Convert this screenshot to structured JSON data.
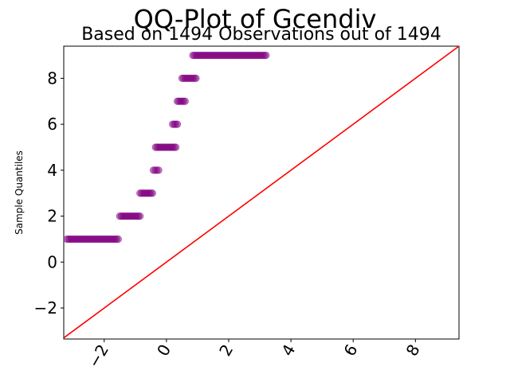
{
  "chart_data": {
    "type": "scatter",
    "title": "QQ-Plot of Gcendiv",
    "subtitle": "Based on 1494 Observations out of 1494",
    "xlabel": "",
    "ylabel": "Sample Quantiles",
    "xlim": [
      -3.3,
      9.4
    ],
    "ylim": [
      -3.35,
      9.4
    ],
    "xticks": [
      -2,
      0,
      2,
      4,
      6,
      8
    ],
    "xtick_labels": [
      "−2",
      "0",
      "2",
      "4",
      "6",
      "8"
    ],
    "yticks": [
      -2,
      0,
      2,
      4,
      6,
      8
    ],
    "ytick_labels": [
      "−2",
      "0",
      "2",
      "4",
      "6",
      "8"
    ],
    "grid": false,
    "point_color": "#800080",
    "line_color": "#ff0000",
    "reference_line": {
      "slope": 1,
      "intercept": 0
    },
    "series": [
      {
        "points": [
          {
            "y": 1,
            "x": [
              -3.2,
              -1.55
            ]
          },
          {
            "y": 2,
            "x": [
              -1.5,
              -0.85
            ]
          },
          {
            "y": 3,
            "x": [
              -0.85,
              -0.45
            ]
          },
          {
            "y": 4,
            "x": [
              -0.42,
              -0.25
            ]
          },
          {
            "y": 5,
            "x": [
              -0.35,
              0.3
            ]
          },
          {
            "y": 6,
            "x": [
              0.2,
              0.35
            ]
          },
          {
            "y": 7,
            "x": [
              0.35,
              0.6
            ]
          },
          {
            "y": 8,
            "x": [
              0.5,
              0.95
            ]
          },
          {
            "y": 9,
            "x": [
              0.85,
              3.2
            ]
          }
        ]
      }
    ]
  }
}
